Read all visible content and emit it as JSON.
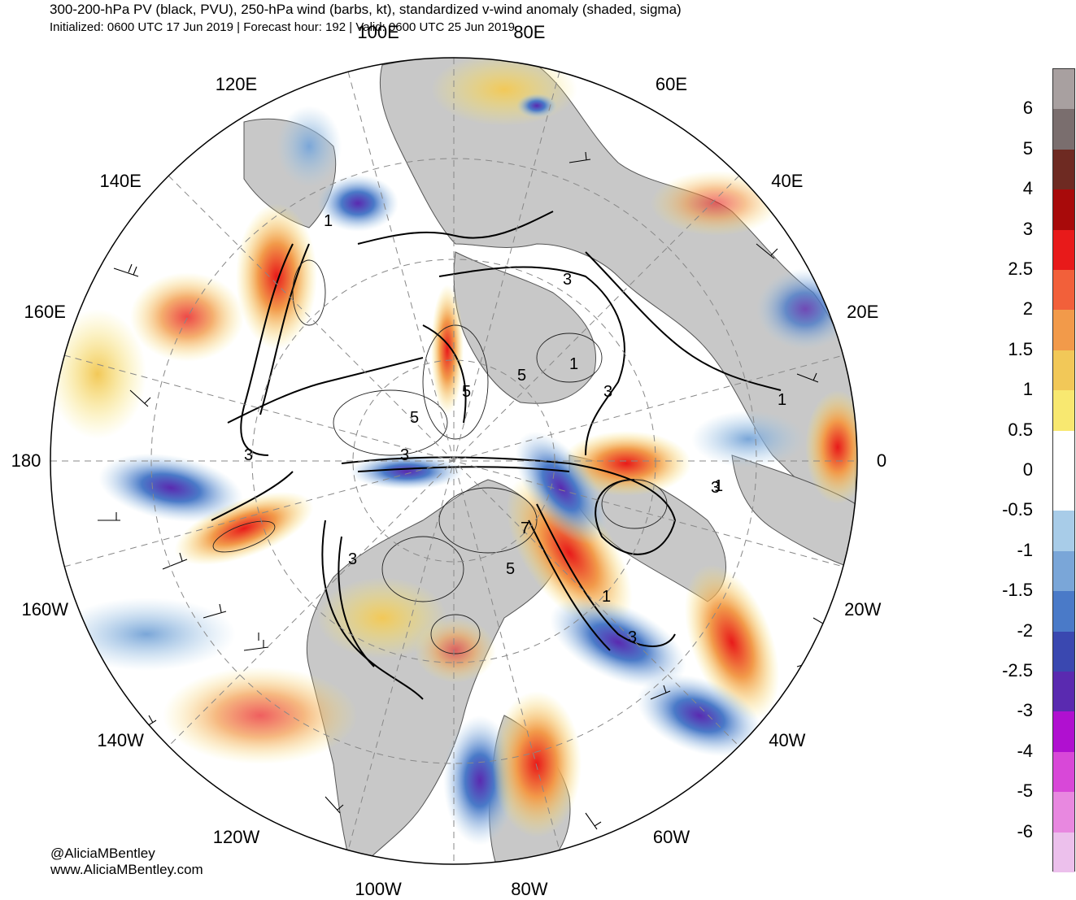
{
  "header": {
    "title": "300-200-hPa PV (black, PVU), 250-hPa wind (barbs, kt), standardized v-wind anomaly (shaded, sigma)",
    "subtitle": "Initialized: 0600 UTC 17 Jun 2019 | Forecast hour: 192 | Valid: 0600 UTC 25 Jun 2019"
  },
  "map": {
    "projection": "north-polar-stereographic",
    "longitude_labels": [
      {
        "text": "100E",
        "lon": 100
      },
      {
        "text": "80E",
        "lon": 80
      },
      {
        "text": "120E",
        "lon": 120
      },
      {
        "text": "60E",
        "lon": 60
      },
      {
        "text": "140E",
        "lon": 140
      },
      {
        "text": "40E",
        "lon": 40
      },
      {
        "text": "160E",
        "lon": 160
      },
      {
        "text": "20E",
        "lon": 20
      },
      {
        "text": "180",
        "lon": 180
      },
      {
        "text": "0",
        "lon": 0
      },
      {
        "text": "160W",
        "lon": -160
      },
      {
        "text": "20W",
        "lon": -20
      },
      {
        "text": "140W",
        "lon": -140
      },
      {
        "text": "40W",
        "lon": -40
      },
      {
        "text": "120W",
        "lon": -120
      },
      {
        "text": "60W",
        "lon": -60
      },
      {
        "text": "100W",
        "lon": -100
      },
      {
        "text": "80W",
        "lon": -80
      }
    ],
    "pv_contour_labels": [
      "1",
      "3",
      "5",
      "3",
      "1",
      "3",
      "5",
      "5",
      "3",
      "3",
      "1",
      "3",
      "5",
      "7",
      "1",
      "3",
      "1"
    ],
    "colors": {
      "land": "#c8c8c8",
      "ocean": "#ffffff",
      "pv_contours": "#000000",
      "graticule": "#888888"
    }
  },
  "colorbar": {
    "levels": [
      "6",
      "5",
      "4",
      "3",
      "2.5",
      "2",
      "1.5",
      "1",
      "0.5",
      "0",
      "-0.5",
      "-1",
      "-1.5",
      "-2",
      "-2.5",
      "-3",
      "-4",
      "-5",
      "-6"
    ],
    "colors": [
      "#a8a0a0",
      "#7a6e6e",
      "#6e2a22",
      "#a80a0a",
      "#e81a1a",
      "#f2603a",
      "#f29a4a",
      "#f2c858",
      "#f8e870",
      "#ffffff",
      "#ffffff",
      "#a8cce8",
      "#7aa6d8",
      "#4a7ac8",
      "#3a48b0",
      "#5a2ab0",
      "#b010d0",
      "#d848d8",
      "#e888e0",
      "#ecc0ec"
    ]
  },
  "credits": {
    "handle": "@AliciaMBentley",
    "website": "www.AliciaMBentley.com"
  }
}
